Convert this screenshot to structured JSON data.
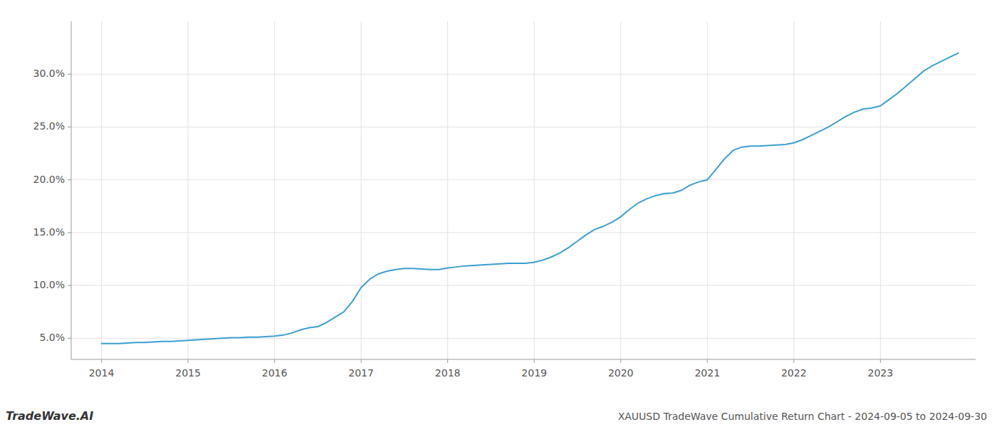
{
  "chart_data": {
    "type": "line",
    "title": "XAUUSD TradeWave Cumulative Return Chart - 2024-09-05 to 2024-09-30",
    "annotations": [
      "TradeWave.AI"
    ],
    "color": "#3a9fd1",
    "grid": true,
    "x": [
      2014.0,
      2014.1,
      2014.2,
      2014.3,
      2014.4,
      2014.5,
      2014.6,
      2014.7,
      2014.8,
      2014.9,
      2015.0,
      2015.1,
      2015.2,
      2015.3,
      2015.4,
      2015.5,
      2015.6,
      2015.7,
      2015.8,
      2015.9,
      2016.0,
      2016.1,
      2016.2,
      2016.3,
      2016.4,
      2016.5,
      2016.6,
      2016.7,
      2016.8,
      2016.9,
      2017.0,
      2017.1,
      2017.2,
      2017.3,
      2017.4,
      2017.5,
      2017.6,
      2017.7,
      2017.8,
      2017.9,
      2018.0,
      2018.1,
      2018.2,
      2018.3,
      2018.4,
      2018.5,
      2018.6,
      2018.7,
      2018.8,
      2018.9,
      2019.0,
      2019.1,
      2019.2,
      2019.3,
      2019.4,
      2019.5,
      2019.6,
      2019.7,
      2019.8,
      2019.9,
      2020.0,
      2020.1,
      2020.2,
      2020.3,
      2020.4,
      2020.5,
      2020.6,
      2020.7,
      2020.8,
      2020.9,
      2021.0,
      2021.1,
      2021.2,
      2021.3,
      2021.4,
      2021.5,
      2021.6,
      2021.7,
      2021.8,
      2021.9,
      2022.0,
      2022.1,
      2022.2,
      2022.3,
      2022.4,
      2022.5,
      2022.6,
      2022.7,
      2022.8,
      2022.9,
      2023.0,
      2023.1,
      2023.2,
      2023.3,
      2023.4,
      2023.5,
      2023.6,
      2023.7,
      2023.8,
      2023.9
    ],
    "values": [
      4.5,
      4.5,
      4.5,
      4.55,
      4.6,
      4.6,
      4.65,
      4.7,
      4.7,
      4.75,
      4.8,
      4.85,
      4.9,
      4.95,
      5.0,
      5.05,
      5.05,
      5.1,
      5.1,
      5.15,
      5.2,
      5.3,
      5.5,
      5.8,
      6.0,
      6.1,
      6.5,
      7.0,
      7.5,
      8.5,
      9.8,
      10.6,
      11.1,
      11.35,
      11.5,
      11.6,
      11.6,
      11.55,
      11.5,
      11.5,
      11.65,
      11.75,
      11.85,
      11.9,
      11.95,
      12.0,
      12.05,
      12.1,
      12.1,
      12.1,
      12.2,
      12.4,
      12.7,
      13.1,
      13.6,
      14.2,
      14.8,
      15.3,
      15.6,
      16.0,
      16.5,
      17.2,
      17.8,
      18.2,
      18.5,
      18.7,
      18.75,
      19.0,
      19.5,
      19.8,
      20.0,
      21.0,
      22.0,
      22.8,
      23.1,
      23.2,
      23.2,
      23.25,
      23.3,
      23.35,
      23.5,
      23.8,
      24.2,
      24.6,
      25.0,
      25.5,
      26.0,
      26.4,
      26.7,
      26.8,
      27.0,
      27.6,
      28.2,
      28.9,
      29.6,
      30.3,
      30.8,
      31.2,
      31.6,
      32.0
    ],
    "xlim": [
      2013.65,
      2024.1
    ],
    "ylim": [
      3.0,
      35.0
    ],
    "xticks": [
      2014,
      2015,
      2016,
      2017,
      2018,
      2019,
      2020,
      2021,
      2022,
      2023
    ],
    "yticks": [
      {
        "value": 5.0,
        "label": "5.0%"
      },
      {
        "value": 10.0,
        "label": "10.0%"
      },
      {
        "value": 15.0,
        "label": "15.0%"
      },
      {
        "value": 20.0,
        "label": "20.0%"
      },
      {
        "value": 25.0,
        "label": "25.0%"
      },
      {
        "value": 30.0,
        "label": "30.0%"
      }
    ]
  }
}
